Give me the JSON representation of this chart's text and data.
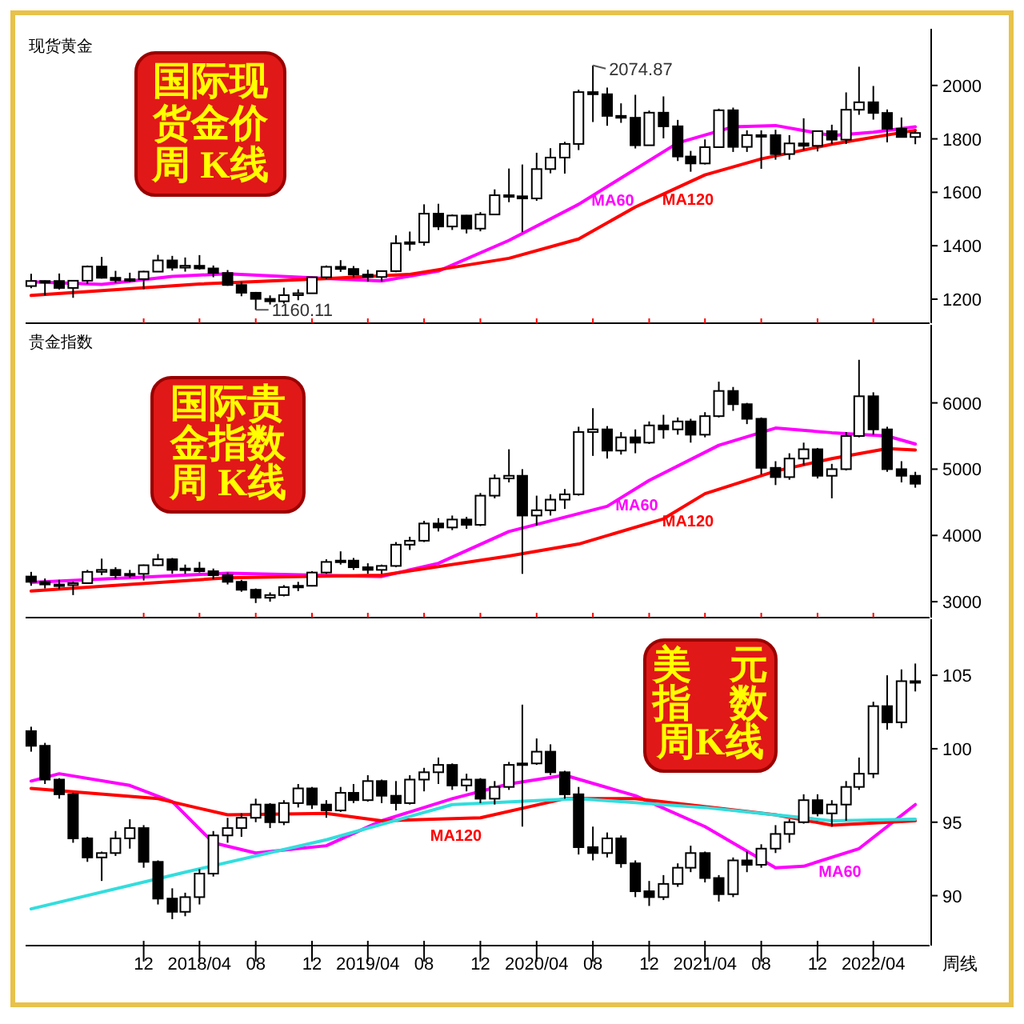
{
  "chart_data": [
    {
      "type": "candlestick",
      "title": "国际现货金价周 K线",
      "subtitle": "现货黄金",
      "xlim": [
        "2017-03-20",
        "2022-08-01"
      ],
      "ylim": [
        1110,
        2200
      ],
      "yticks": [
        1200,
        1400,
        1600,
        1800,
        2000
      ],
      "tick_labels": "y",
      "xticks": [
        {
          "value": "2017-12",
          "label": null
        },
        {
          "value": "2018-04",
          "label": null
        },
        {
          "value": "2018-08",
          "label": null
        },
        {
          "value": "2018-12",
          "label": null
        },
        {
          "value": "2019-04",
          "label": null
        },
        {
          "value": "2019-08",
          "label": null
        },
        {
          "value": "2019-12",
          "label": null
        },
        {
          "value": "2020-04",
          "label": null
        },
        {
          "value": "2020-08",
          "label": null
        },
        {
          "value": "2020-12",
          "label": null
        },
        {
          "value": "2021-04",
          "label": null
        },
        {
          "value": "2021-08",
          "label": null
        },
        {
          "value": "2021-12",
          "label": null
        },
        {
          "value": "2022-04",
          "label": null
        }
      ],
      "x": [
        "2017-04",
        "2017-05",
        "2017-06",
        "2017-07",
        "2017-08",
        "2017-09",
        "2017-10",
        "2017-11",
        "2017-12",
        "2018-01",
        "2018-02",
        "2018-03",
        "2018-04",
        "2018-05",
        "2018-06",
        "2018-07",
        "2018-08",
        "2018-09",
        "2018-10",
        "2018-11",
        "2018-12",
        "2019-01",
        "2019-02",
        "2019-03",
        "2019-04",
        "2019-05",
        "2019-06",
        "2019-07",
        "2019-08",
        "2019-09",
        "2019-10",
        "2019-11",
        "2019-12",
        "2020-01",
        "2020-02",
        "2020-03",
        "2020-04",
        "2020-05",
        "2020-06",
        "2020-07",
        "2020-08",
        "2020-09",
        "2020-10",
        "2020-11",
        "2020-12",
        "2021-01",
        "2021-02",
        "2021-03",
        "2021-04",
        "2021-05",
        "2021-06",
        "2021-07",
        "2021-08",
        "2021-09",
        "2021-10",
        "2021-11",
        "2021-12",
        "2022-01",
        "2022-02",
        "2022-03",
        "2022-04",
        "2022-05",
        "2022-06",
        "2022-07"
      ],
      "annotations": [
        {
          "text": "2074.87",
          "x": "2020-08",
          "y": 2074.87
        },
        {
          "text": "1160.11",
          "x": "2018-08",
          "y": 1160.11
        }
      ],
      "series": [
        {
          "type": "candlestick",
          "color": "#000000",
          "ohlc": [
            [
              1249,
              1295,
              1241,
              1268
            ],
            [
              1268,
              1270,
              1214,
              1268
            ],
            [
              1268,
              1296,
              1236,
              1242
            ],
            [
              1242,
              1270,
              1205,
              1269
            ],
            [
              1269,
              1326,
              1257,
              1322
            ],
            [
              1322,
              1358,
              1277,
              1280
            ],
            [
              1280,
              1306,
              1261,
              1271
            ],
            [
              1271,
              1299,
              1264,
              1275
            ],
            [
              1275,
              1306,
              1237,
              1303
            ],
            [
              1303,
              1366,
              1302,
              1345
            ],
            [
              1345,
              1362,
              1307,
              1318
            ],
            [
              1318,
              1356,
              1303,
              1325
            ],
            [
              1325,
              1365,
              1310,
              1315
            ],
            [
              1315,
              1326,
              1282,
              1298
            ],
            [
              1298,
              1309,
              1250,
              1253
            ],
            [
              1253,
              1265,
              1211,
              1224
            ],
            [
              1224,
              1227,
              1160.11,
              1201
            ],
            [
              1201,
              1214,
              1180,
              1192
            ],
            [
              1192,
              1243,
              1183,
              1215
            ],
            [
              1215,
              1237,
              1196,
              1222
            ],
            [
              1222,
              1284,
              1221,
              1282
            ],
            [
              1282,
              1326,
              1276,
              1321
            ],
            [
              1321,
              1346,
              1302,
              1313
            ],
            [
              1313,
              1324,
              1281,
              1292
            ],
            [
              1292,
              1310,
              1266,
              1283
            ],
            [
              1283,
              1306,
              1266,
              1305
            ],
            [
              1305,
              1439,
              1301,
              1409
            ],
            [
              1409,
              1453,
              1381,
              1413
            ],
            [
              1413,
              1555,
              1400,
              1520
            ],
            [
              1520,
              1557,
              1459,
              1472
            ],
            [
              1472,
              1517,
              1459,
              1513
            ],
            [
              1513,
              1515,
              1446,
              1464
            ],
            [
              1464,
              1526,
              1454,
              1517
            ],
            [
              1517,
              1611,
              1517,
              1589
            ],
            [
              1589,
              1689,
              1563,
              1585
            ],
            [
              1585,
              1704,
              1451,
              1577
            ],
            [
              1577,
              1748,
              1568,
              1687
            ],
            [
              1687,
              1765,
              1671,
              1730
            ],
            [
              1730,
              1789,
              1670,
              1781
            ],
            [
              1781,
              1984,
              1758,
              1975
            ],
            [
              1975,
              2074.87,
              1863,
              1967
            ],
            [
              1967,
              1992,
              1849,
              1886
            ],
            [
              1886,
              1933,
              1860,
              1879
            ],
            [
              1879,
              1965,
              1764,
              1776
            ],
            [
              1776,
              1906,
              1775,
              1898
            ],
            [
              1898,
              1959,
              1802,
              1847
            ],
            [
              1847,
              1871,
              1717,
              1734
            ],
            [
              1734,
              1755,
              1677,
              1708
            ],
            [
              1708,
              1798,
              1704,
              1769
            ],
            [
              1769,
              1913,
              1766,
              1907
            ],
            [
              1907,
              1917,
              1751,
              1770
            ],
            [
              1770,
              1832,
              1751,
              1814
            ],
            [
              1814,
              1832,
              1688,
              1814
            ],
            [
              1814,
              1834,
              1722,
              1743
            ],
            [
              1743,
              1814,
              1722,
              1783
            ],
            [
              1783,
              1877,
              1758,
              1774
            ],
            [
              1774,
              1831,
              1753,
              1829
            ],
            [
              1829,
              1853,
              1780,
              1797
            ],
            [
              1797,
              1974,
              1781,
              1909
            ],
            [
              1909,
              2070,
              1890,
              1937
            ],
            [
              1937,
              1998,
              1872,
              1897
            ],
            [
              1897,
              1910,
              1787,
              1838
            ],
            [
              1838,
              1880,
              1805,
              1807
            ],
            [
              1807,
              1830,
              1780,
              1822
            ]
          ]
        },
        {
          "type": "line",
          "name": "MA60",
          "color": "#ff00ff",
          "x": [
            "2017-04",
            "2017-09",
            "2018-02",
            "2018-06",
            "2018-12",
            "2019-05",
            "2019-09",
            "2020-02",
            "2020-07",
            "2021-02",
            "2021-06",
            "2021-09",
            "2022-01",
            "2022-04",
            "2022-07"
          ],
          "values": [
            1265,
            1255,
            1285,
            1295,
            1280,
            1268,
            1305,
            1420,
            1555,
            1785,
            1845,
            1850,
            1812,
            1825,
            1845
          ]
        },
        {
          "type": "line",
          "name": "MA120",
          "color": "#ff0000",
          "x": [
            "2017-04",
            "2018-04",
            "2019-01",
            "2019-07",
            "2020-02",
            "2020-07",
            "2020-11",
            "2021-04",
            "2021-08",
            "2022-01",
            "2022-07"
          ],
          "values": [
            1214,
            1257,
            1277,
            1293,
            1353,
            1425,
            1545,
            1665,
            1725,
            1780,
            1832
          ]
        }
      ]
    },
    {
      "type": "candlestick",
      "title": "国际贵金指数周 K线",
      "subtitle": "贵金指数",
      "xlim": [
        "2017-03-20",
        "2022-08-01"
      ],
      "ylim": [
        2760,
        7130
      ],
      "yticks": [
        3000,
        4000,
        5000,
        6000
      ],
      "tick_labels": "y",
      "xticks": [
        {
          "value": "2017-12",
          "label": null
        },
        {
          "value": "2018-04",
          "label": null
        },
        {
          "value": "2018-08",
          "label": null
        },
        {
          "value": "2018-12",
          "label": null
        },
        {
          "value": "2019-04",
          "label": null
        },
        {
          "value": "2019-08",
          "label": null
        },
        {
          "value": "2019-12",
          "label": null
        },
        {
          "value": "2020-04",
          "label": null
        },
        {
          "value": "2020-08",
          "label": null
        },
        {
          "value": "2020-12",
          "label": null
        },
        {
          "value": "2021-04",
          "label": null
        },
        {
          "value": "2021-08",
          "label": null
        },
        {
          "value": "2021-12",
          "label": null
        },
        {
          "value": "2022-04",
          "label": null
        }
      ],
      "x": [
        "2017-04",
        "2017-05",
        "2017-06",
        "2017-07",
        "2017-08",
        "2017-09",
        "2017-10",
        "2017-11",
        "2017-12",
        "2018-01",
        "2018-02",
        "2018-03",
        "2018-04",
        "2018-05",
        "2018-06",
        "2018-07",
        "2018-08",
        "2018-09",
        "2018-10",
        "2018-11",
        "2018-12",
        "2019-01",
        "2019-02",
        "2019-03",
        "2019-04",
        "2019-05",
        "2019-06",
        "2019-07",
        "2019-08",
        "2019-09",
        "2019-10",
        "2019-11",
        "2019-12",
        "2020-01",
        "2020-02",
        "2020-03",
        "2020-04",
        "2020-05",
        "2020-06",
        "2020-07",
        "2020-08",
        "2020-09",
        "2020-10",
        "2020-11",
        "2020-12",
        "2021-01",
        "2021-02",
        "2021-03",
        "2021-04",
        "2021-05",
        "2021-06",
        "2021-07",
        "2021-08",
        "2021-09",
        "2021-10",
        "2021-11",
        "2021-12",
        "2022-01",
        "2022-02",
        "2022-03",
        "2022-04",
        "2022-05",
        "2022-06",
        "2022-07"
      ],
      "series": [
        {
          "type": "candlestick",
          "color": "#000000",
          "ohlc": [
            [
              3380,
              3450,
              3240,
              3300
            ],
            [
              3300,
              3350,
              3200,
              3260
            ],
            [
              3260,
              3330,
              3190,
              3250
            ],
            [
              3250,
              3300,
              3100,
              3280
            ],
            [
              3280,
              3480,
              3270,
              3450
            ],
            [
              3450,
              3650,
              3400,
              3480
            ],
            [
              3480,
              3520,
              3350,
              3400
            ],
            [
              3400,
              3480,
              3360,
              3420
            ],
            [
              3420,
              3560,
              3320,
              3550
            ],
            [
              3550,
              3720,
              3540,
              3640
            ],
            [
              3640,
              3660,
              3420,
              3480
            ],
            [
              3480,
              3560,
              3420,
              3500
            ],
            [
              3500,
              3600,
              3440,
              3460
            ],
            [
              3460,
              3500,
              3340,
              3400
            ],
            [
              3400,
              3440,
              3260,
              3300
            ],
            [
              3300,
              3330,
              3150,
              3180
            ],
            [
              3180,
              3200,
              2980,
              3060
            ],
            [
              3060,
              3140,
              3000,
              3100
            ],
            [
              3100,
              3250,
              3080,
              3220
            ],
            [
              3220,
              3300,
              3160,
              3240
            ],
            [
              3240,
              3460,
              3230,
              3440
            ],
            [
              3440,
              3640,
              3420,
              3600
            ],
            [
              3600,
              3760,
              3560,
              3620
            ],
            [
              3620,
              3660,
              3480,
              3520
            ],
            [
              3520,
              3580,
              3420,
              3480
            ],
            [
              3480,
              3560,
              3420,
              3540
            ],
            [
              3540,
              3900,
              3520,
              3860
            ],
            [
              3860,
              3980,
              3780,
              3920
            ],
            [
              3920,
              4220,
              3900,
              4180
            ],
            [
              4180,
              4260,
              4060,
              4120
            ],
            [
              4120,
              4300,
              4080,
              4240
            ],
            [
              4240,
              4280,
              4100,
              4160
            ],
            [
              4160,
              4640,
              4140,
              4600
            ],
            [
              4600,
              4920,
              4560,
              4860
            ],
            [
              4860,
              5300,
              4800,
              4900
            ],
            [
              4900,
              5000,
              3420,
              4300
            ],
            [
              4300,
              4600,
              4150,
              4380
            ],
            [
              4380,
              4620,
              4300,
              4540
            ],
            [
              4540,
              4700,
              4400,
              4620
            ],
            [
              4620,
              5640,
              4600,
              5560
            ],
            [
              5560,
              5920,
              5200,
              5600
            ],
            [
              5600,
              5650,
              5160,
              5280
            ],
            [
              5280,
              5560,
              5220,
              5480
            ],
            [
              5480,
              5600,
              5240,
              5400
            ],
            [
              5400,
              5720,
              5380,
              5660
            ],
            [
              5660,
              5820,
              5460,
              5600
            ],
            [
              5600,
              5780,
              5520,
              5720
            ],
            [
              5720,
              5760,
              5400,
              5520
            ],
            [
              5520,
              5860,
              5480,
              5800
            ],
            [
              5800,
              6320,
              5780,
              6180
            ],
            [
              6180,
              6240,
              5880,
              5980
            ],
            [
              5980,
              6000,
              5680,
              5760
            ],
            [
              5760,
              5780,
              4920,
              5020
            ],
            [
              5020,
              5120,
              4760,
              4880
            ],
            [
              4880,
              5240,
              4840,
              5160
            ],
            [
              5160,
              5400,
              5060,
              5300
            ],
            [
              5300,
              5320,
              4860,
              4900
            ],
            [
              4900,
              5080,
              4560,
              5000
            ],
            [
              5000,
              5560,
              4980,
              5500
            ],
            [
              5500,
              6650,
              5480,
              6100
            ],
            [
              6100,
              6160,
              5520,
              5600
            ],
            [
              5600,
              5640,
              4960,
              5000
            ],
            [
              5000,
              5120,
              4800,
              4900
            ],
            [
              4900,
              4960,
              4720,
              4780
            ]
          ]
        },
        {
          "type": "line",
          "name": "MA60",
          "color": "#ff00ff",
          "x": [
            "2017-04",
            "2018-06",
            "2019-05",
            "2019-09",
            "2020-02",
            "2020-09",
            "2020-12",
            "2021-05",
            "2021-09",
            "2022-01",
            "2022-05",
            "2022-07"
          ],
          "values": [
            3290,
            3430,
            3380,
            3580,
            4060,
            4440,
            4830,
            5360,
            5620,
            5550,
            5500,
            5380
          ]
        },
        {
          "type": "line",
          "name": "MA120",
          "color": "#ff0000",
          "x": [
            "2017-04",
            "2018-06",
            "2019-05",
            "2020-02",
            "2020-07",
            "2021-01",
            "2021-04",
            "2021-09",
            "2022-01",
            "2022-05",
            "2022-07"
          ],
          "values": [
            3160,
            3360,
            3400,
            3690,
            3870,
            4250,
            4630,
            4970,
            5160,
            5310,
            5290
          ]
        }
      ]
    },
    {
      "type": "candlestick",
      "title": "美　元指　数周K线",
      "xlim": [
        "2017-03-20",
        "2022-08-01"
      ],
      "ylim": [
        86.6,
        108.6
      ],
      "yticks": [
        90,
        95,
        100,
        105
      ],
      "xticks": [
        {
          "value": "2017-12",
          "label": "12"
        },
        {
          "value": "2018-04",
          "label": "2018/04"
        },
        {
          "value": "2018-08",
          "label": "08"
        },
        {
          "value": "2018-12",
          "label": "12"
        },
        {
          "value": "2019-04",
          "label": "2019/04"
        },
        {
          "value": "2019-08",
          "label": "08"
        },
        {
          "value": "2019-12",
          "label": "12"
        },
        {
          "value": "2020-04",
          "label": "2020/04"
        },
        {
          "value": "2020-08",
          "label": "08"
        },
        {
          "value": "2020-12",
          "label": "12"
        },
        {
          "value": "2021-04",
          "label": "2021/04"
        },
        {
          "value": "2021-08",
          "label": "08"
        },
        {
          "value": "2021-12",
          "label": "12"
        },
        {
          "value": "2022-04",
          "label": "2022/04"
        }
      ],
      "x": [
        "2017-04",
        "2017-05",
        "2017-06",
        "2017-07",
        "2017-08",
        "2017-09",
        "2017-10",
        "2017-11",
        "2017-12",
        "2018-01",
        "2018-02",
        "2018-03",
        "2018-04",
        "2018-05",
        "2018-06",
        "2018-07",
        "2018-08",
        "2018-09",
        "2018-10",
        "2018-11",
        "2018-12",
        "2019-01",
        "2019-02",
        "2019-03",
        "2019-04",
        "2019-05",
        "2019-06",
        "2019-07",
        "2019-08",
        "2019-09",
        "2019-10",
        "2019-11",
        "2019-12",
        "2020-01",
        "2020-02",
        "2020-03",
        "2020-04",
        "2020-05",
        "2020-06",
        "2020-07",
        "2020-08",
        "2020-09",
        "2020-10",
        "2020-11",
        "2020-12",
        "2021-01",
        "2021-02",
        "2021-03",
        "2021-04",
        "2021-05",
        "2021-06",
        "2021-07",
        "2021-08",
        "2021-09",
        "2021-10",
        "2021-11",
        "2021-12",
        "2022-01",
        "2022-02",
        "2022-03",
        "2022-04",
        "2022-05",
        "2022-06",
        "2022-07"
      ],
      "annotations": [
        "周线"
      ],
      "series": [
        {
          "type": "candlestick",
          "color": "#000000",
          "ohlc": [
            [
              101.2,
              101.5,
              99.8,
              100.2
            ],
            [
              100.2,
              100.4,
              97.6,
              97.9
            ],
            [
              97.9,
              98.0,
              96.6,
              96.9
            ],
            [
              96.9,
              97.0,
              93.6,
              93.9
            ],
            [
              93.9,
              94.0,
              92.3,
              92.6
            ],
            [
              92.6,
              93.0,
              91.0,
              92.9
            ],
            [
              92.9,
              94.4,
              92.7,
              93.9
            ],
            [
              93.9,
              95.2,
              93.2,
              94.6
            ],
            [
              94.6,
              94.8,
              91.9,
              92.3
            ],
            [
              92.3,
              92.4,
              89.4,
              89.8
            ],
            [
              89.8,
              90.5,
              88.4,
              88.9
            ],
            [
              88.9,
              90.2,
              88.6,
              89.9
            ],
            [
              89.9,
              91.8,
              89.4,
              91.5
            ],
            [
              91.5,
              94.4,
              91.3,
              94.1
            ],
            [
              94.1,
              95.3,
              93.6,
              94.6
            ],
            [
              94.6,
              95.6,
              94.0,
              95.3
            ],
            [
              95.3,
              96.6,
              95.0,
              96.2
            ],
            [
              96.2,
              96.3,
              94.6,
              95.0
            ],
            [
              95.0,
              96.5,
              94.8,
              96.3
            ],
            [
              96.3,
              97.6,
              96.0,
              97.3
            ],
            [
              97.3,
              97.4,
              95.9,
              96.2
            ],
            [
              96.2,
              96.5,
              95.3,
              95.8
            ],
            [
              95.8,
              97.4,
              95.7,
              97.0
            ],
            [
              97.0,
              97.6,
              96.3,
              96.5
            ],
            [
              96.5,
              98.2,
              96.4,
              97.8
            ],
            [
              97.8,
              97.9,
              96.3,
              96.8
            ],
            [
              96.8,
              97.8,
              95.8,
              96.3
            ],
            [
              96.3,
              98.2,
              96.2,
              97.9
            ],
            [
              97.9,
              98.7,
              97.1,
              98.4
            ],
            [
              98.4,
              99.4,
              97.6,
              98.9
            ],
            [
              98.9,
              99.0,
              97.2,
              97.5
            ],
            [
              97.5,
              98.3,
              97.1,
              97.9
            ],
            [
              97.9,
              98.0,
              96.3,
              96.6
            ],
            [
              96.6,
              97.8,
              96.2,
              97.4
            ],
            [
              97.4,
              99.1,
              97.2,
              98.9
            ],
            [
              98.9,
              103.0,
              94.7,
              99.0
            ],
            [
              99.0,
              100.7,
              98.9,
              99.8
            ],
            [
              99.8,
              100.3,
              98.2,
              98.4
            ],
            [
              98.4,
              98.5,
              96.6,
              96.9
            ],
            [
              96.9,
              97.4,
              92.8,
              93.3
            ],
            [
              93.3,
              94.7,
              92.4,
              92.9
            ],
            [
              92.9,
              94.3,
              92.6,
              93.9
            ],
            [
              93.9,
              94.1,
              91.9,
              92.2
            ],
            [
              92.2,
              92.4,
              89.9,
              90.3
            ],
            [
              90.3,
              91.0,
              89.3,
              89.9
            ],
            [
              89.9,
              91.4,
              89.7,
              90.8
            ],
            [
              90.8,
              92.2,
              90.6,
              91.9
            ],
            [
              91.9,
              93.4,
              91.6,
              92.9
            ],
            [
              92.9,
              93.0,
              90.9,
              91.2
            ],
            [
              91.2,
              91.4,
              89.6,
              90.1
            ],
            [
              90.1,
              92.6,
              89.9,
              92.4
            ],
            [
              92.4,
              93.0,
              91.6,
              92.1
            ],
            [
              92.1,
              93.5,
              91.9,
              93.2
            ],
            [
              93.2,
              94.8,
              92.9,
              94.2
            ],
            [
              94.2,
              95.2,
              93.6,
              95.0
            ],
            [
              95.0,
              96.9,
              94.9,
              96.5
            ],
            [
              96.5,
              96.9,
              95.4,
              95.6
            ],
            [
              95.6,
              96.5,
              94.7,
              96.2
            ],
            [
              96.2,
              97.8,
              95.1,
              97.4
            ],
            [
              97.4,
              99.4,
              97.2,
              98.3
            ],
            [
              98.3,
              103.2,
              98.0,
              102.9
            ],
            [
              102.9,
              105.0,
              101.3,
              101.8
            ],
            [
              101.8,
              105.4,
              101.4,
              104.6
            ],
            [
              104.6,
              105.8,
              103.9,
              104.5
            ]
          ]
        },
        {
          "type": "line",
          "name": "MA60",
          "color": "#ff00ff",
          "x": [
            "2017-04",
            "2017-06",
            "2017-11",
            "2018-02",
            "2018-05",
            "2018-08",
            "2019-01",
            "2019-05",
            "2019-10",
            "2020-02",
            "2020-06",
            "2020-11",
            "2021-04",
            "2021-09",
            "2021-11",
            "2022-03",
            "2022-07"
          ],
          "values": [
            97.8,
            98.3,
            97.5,
            96.4,
            93.6,
            92.9,
            93.4,
            95.1,
            96.6,
            97.6,
            98.2,
            96.8,
            94.7,
            91.9,
            92.0,
            93.2,
            96.2
          ]
        },
        {
          "type": "line",
          "name": "MA120",
          "color": "#ff0000",
          "x": [
            "2017-04",
            "2018-01",
            "2018-06",
            "2019-01",
            "2019-05",
            "2019-12",
            "2020-06",
            "2020-11",
            "2021-09",
            "2022-01",
            "2022-07"
          ],
          "values": [
            97.3,
            96.6,
            95.5,
            95.6,
            95.1,
            95.3,
            96.6,
            96.6,
            95.5,
            94.8,
            95.1
          ]
        },
        {
          "type": "line",
          "color": "#33dddd",
          "x": [
            "2017-04",
            "2018-03",
            "2019-01",
            "2019-10",
            "2020-07",
            "2021-04",
            "2022-01",
            "2022-07"
          ],
          "values": [
            89.1,
            91.6,
            93.8,
            96.2,
            96.6,
            96.0,
            95.1,
            95.2
          ]
        }
      ]
    }
  ]
}
